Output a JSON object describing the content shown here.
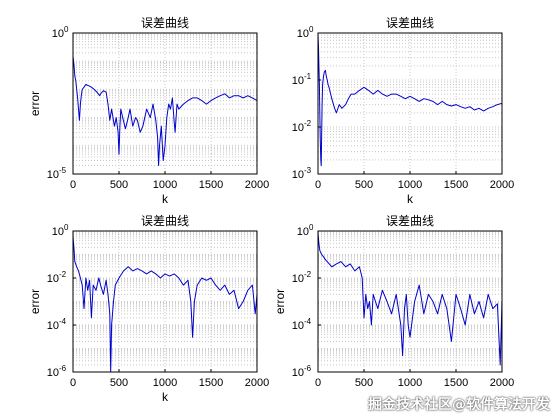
{
  "colors": {
    "line": "#0000cc",
    "grid": "#c8c8c8",
    "axis": "#000000"
  },
  "chart_data": [
    {
      "type": "line",
      "title": "误差曲线",
      "xlabel": "k",
      "ylabel": "error",
      "yscale": "log",
      "xlim": [
        0,
        2000
      ],
      "ylim_exp": [
        -5,
        0
      ],
      "xticks": [
        "0",
        "500",
        "1000",
        "1500",
        "2000"
      ],
      "yticks": [
        {
          "base": "10",
          "exp": "0"
        },
        {
          "base": "10",
          "exp": "-5"
        }
      ],
      "grid": true,
      "series": [
        {
          "x": [
            0,
            10,
            20,
            30,
            40,
            50,
            60,
            70,
            80,
            90,
            100,
            120,
            140,
            160,
            180,
            200,
            230,
            260,
            290,
            300,
            330,
            360,
            380,
            400,
            420,
            450,
            470,
            490,
            500,
            510,
            520,
            540,
            570,
            600,
            620,
            650,
            680,
            700,
            730,
            760,
            800,
            840,
            870,
            900,
            920,
            930,
            940,
            960,
            980,
            1000,
            1020,
            1040,
            1060,
            1080,
            1100,
            1110,
            1130,
            1150,
            1200,
            1250,
            1300,
            1350,
            1400,
            1450,
            1500,
            1550,
            1600,
            1650,
            1700,
            1750,
            1800,
            1850,
            1900,
            1950,
            2000
          ],
          "y": [
            0.15,
            0.08,
            0.03,
            0.02,
            0.01,
            0.005,
            0.002,
            0.0008,
            0.003,
            0.006,
            0.01,
            0.012,
            0.015,
            0.014,
            0.013,
            0.012,
            0.01,
            0.008,
            0.006,
            0.007,
            0.009,
            0.008,
            0.003,
            0.0008,
            0.002,
            0.0005,
            0.001,
            0.0003,
            5e-05,
            0.0005,
            0.002,
            0.001,
            0.0004,
            0.001,
            0.002,
            0.0005,
            0.001,
            0.0008,
            0.0003,
            0.0005,
            0.002,
            0.001,
            0.003,
            0.0008,
            0.0002,
            2e-05,
            0.0001,
            0.0005,
            3e-05,
            0.0001,
            0.001,
            0.003,
            0.002,
            0.005,
            0.0007,
            0.0003,
            0.003,
            0.002,
            0.003,
            0.004,
            0.005,
            0.005,
            0.004,
            0.003,
            0.004,
            0.005,
            0.006,
            0.007,
            0.005,
            0.006,
            0.006,
            0.005,
            0.006,
            0.005,
            0.004
          ]
        }
      ]
    },
    {
      "type": "line",
      "title": "误差曲线",
      "xlabel": "k",
      "ylabel": "",
      "yscale": "log",
      "xlim": [
        0,
        2000
      ],
      "ylim_exp": [
        -3,
        0
      ],
      "xticks": [
        "0",
        "500",
        "1000",
        "1500",
        "2000"
      ],
      "yticks": [
        {
          "base": "10",
          "exp": "0"
        },
        {
          "base": "10",
          "exp": "-1"
        },
        {
          "base": "10",
          "exp": "-2"
        },
        {
          "base": "10",
          "exp": "-3"
        }
      ],
      "grid": true,
      "series": [
        {
          "x": [
            0,
            5,
            10,
            15,
            20,
            25,
            30,
            35,
            40,
            45,
            50,
            60,
            70,
            80,
            90,
            100,
            110,
            120,
            150,
            180,
            200,
            230,
            260,
            300,
            330,
            360,
            400,
            450,
            500,
            550,
            600,
            650,
            700,
            750,
            800,
            850,
            900,
            950,
            1000,
            1050,
            1100,
            1150,
            1200,
            1250,
            1300,
            1350,
            1400,
            1450,
            1500,
            1550,
            1600,
            1650,
            1700,
            1750,
            1800,
            1850,
            1900,
            1950,
            2000
          ],
          "y": [
            0.9,
            0.5,
            0.2,
            0.08,
            0.02,
            0.005,
            0.002,
            0.0015,
            0.008,
            0.03,
            0.08,
            0.12,
            0.15,
            0.16,
            0.12,
            0.1,
            0.08,
            0.07,
            0.04,
            0.025,
            0.02,
            0.03,
            0.025,
            0.03,
            0.04,
            0.05,
            0.05,
            0.06,
            0.07,
            0.06,
            0.05,
            0.06,
            0.05,
            0.045,
            0.05,
            0.05,
            0.045,
            0.04,
            0.045,
            0.04,
            0.035,
            0.04,
            0.038,
            0.035,
            0.03,
            0.035,
            0.03,
            0.028,
            0.03,
            0.027,
            0.025,
            0.027,
            0.023,
            0.025,
            0.022,
            0.025,
            0.027,
            0.03,
            0.032
          ]
        }
      ]
    },
    {
      "type": "line",
      "title": "误差曲线",
      "xlabel": "k",
      "ylabel": "error",
      "yscale": "log",
      "xlim": [
        0,
        2000
      ],
      "ylim_exp": [
        -6,
        0
      ],
      "xticks": [
        "0",
        "500",
        "1000",
        "1500",
        "2000"
      ],
      "yticks": [
        {
          "base": "10",
          "exp": "0"
        },
        {
          "base": "10",
          "exp": "-2"
        },
        {
          "base": "10",
          "exp": "-4"
        },
        {
          "base": "10",
          "exp": "-6"
        }
      ],
      "grid": true,
      "series": [
        {
          "x": [
            0,
            10,
            20,
            40,
            60,
            80,
            100,
            120,
            140,
            160,
            180,
            200,
            220,
            250,
            280,
            300,
            330,
            360,
            380,
            400,
            410,
            420,
            440,
            460,
            500,
            550,
            600,
            650,
            700,
            750,
            800,
            850,
            900,
            950,
            1000,
            1050,
            1100,
            1150,
            1200,
            1250,
            1280,
            1300,
            1320,
            1350,
            1400,
            1450,
            1500,
            1550,
            1600,
            1650,
            1700,
            1750,
            1800,
            1850,
            1900,
            1950,
            1980,
            2000
          ],
          "y": [
            0.6,
            0.2,
            0.05,
            0.03,
            0.02,
            0.01,
            0.005,
            0.0005,
            0.01,
            0.003,
            0.008,
            0.0002,
            0.005,
            0.003,
            0.01,
            0.005,
            0.002,
            0.008,
            0.002,
            0.0003,
            1e-06,
            0.0001,
            0.001,
            0.005,
            0.01,
            0.02,
            0.03,
            0.02,
            0.025,
            0.02,
            0.015,
            0.02,
            0.015,
            0.01,
            0.015,
            0.012,
            0.015,
            0.01,
            0.005,
            0.008,
            0.001,
            3e-05,
            0.001,
            0.005,
            0.01,
            0.008,
            0.01,
            0.005,
            0.003,
            0.005,
            0.002,
            0.003,
            0.0005,
            0.001,
            0.003,
            0.005,
            0.0003,
            0.002
          ]
        }
      ]
    },
    {
      "type": "line",
      "title": "误差曲线",
      "xlabel": "",
      "ylabel": "error",
      "yscale": "log",
      "xlim": [
        0,
        2000
      ],
      "ylim_exp": [
        -6,
        0
      ],
      "xticks": [
        "0",
        "500",
        "1000",
        "1500",
        "2000"
      ],
      "yticks": [
        {
          "base": "10",
          "exp": "0"
        },
        {
          "base": "10",
          "exp": "-2"
        },
        {
          "base": "10",
          "exp": "-4"
        },
        {
          "base": "10",
          "exp": "-6"
        }
      ],
      "grid": true,
      "series": [
        {
          "x": [
            0,
            10,
            20,
            40,
            60,
            80,
            100,
            150,
            200,
            250,
            300,
            350,
            400,
            450,
            480,
            500,
            520,
            540,
            560,
            580,
            600,
            650,
            700,
            750,
            800,
            850,
            900,
            920,
            940,
            960,
            980,
            1000,
            1050,
            1100,
            1150,
            1200,
            1250,
            1300,
            1350,
            1400,
            1450,
            1500,
            1550,
            1600,
            1650,
            1700,
            1750,
            1800,
            1850,
            1900,
            1950,
            1980,
            2000
          ],
          "y": [
            0.8,
            0.3,
            0.15,
            0.1,
            0.08,
            0.06,
            0.05,
            0.03,
            0.04,
            0.05,
            0.03,
            0.04,
            0.02,
            0.03,
            0.01,
            0.0002,
            0.002,
            0.0005,
            0.001,
            0.0001,
            0.002,
            0.0005,
            0.003,
            0.001,
            0.0003,
            0.002,
            0.0001,
            5e-06,
            0.0005,
            0.002,
            0.0001,
            3e-05,
            0.001,
            0.005,
            0.0003,
            0.002,
            0.001,
            0.0003,
            0.002,
            0.0005,
            2e-05,
            0.002,
            0.0005,
            0.0001,
            0.002,
            0.0003,
            0.001,
            0.0002,
            0.002,
            0.0005,
            0.0008,
            2e-06,
            0.001
          ]
        }
      ]
    }
  ],
  "watermark": "掘金技术社区@软件算法开发"
}
